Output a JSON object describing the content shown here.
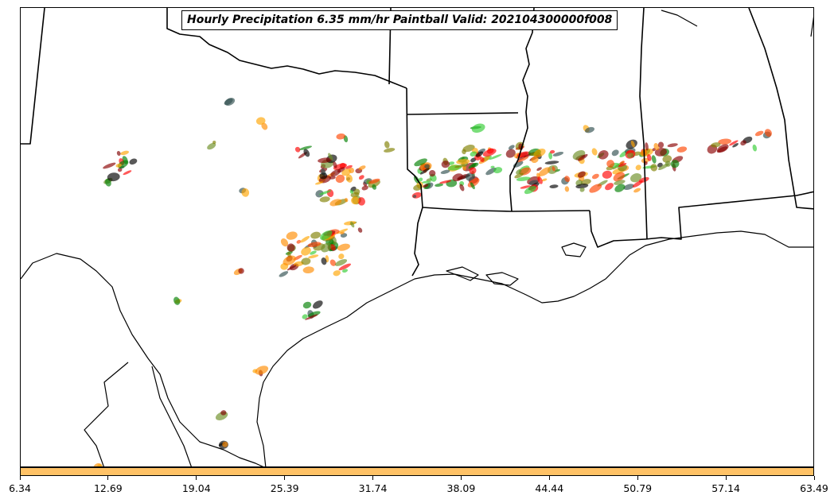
{
  "title": "Hourly Precipitation 6.35 mm/hr Paintball Valid: 202104300000f008",
  "colorbar": {
    "color": "#FFC266",
    "ticks": [
      "6.34",
      "12.69",
      "19.04",
      "25.39",
      "31.74",
      "38.09",
      "44.44",
      "50.79",
      "57.14",
      "63.49"
    ]
  },
  "member_colors": [
    "#FF8C00",
    "#FFA500",
    "#008000",
    "#32CD32",
    "#FF0000",
    "#FF4500",
    "#8B0000",
    "#800000",
    "#808000",
    "#6B8E23",
    "#000000",
    "#2F4F4F"
  ],
  "map_features": [
    "state-borders",
    "coastline",
    "international-border"
  ]
}
